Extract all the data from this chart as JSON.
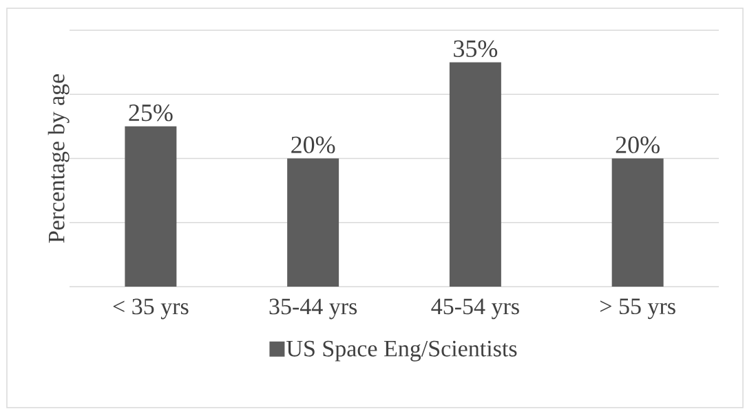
{
  "chart_data": {
    "type": "bar",
    "ylabel": "Percentage  by age",
    "categories": [
      "< 35 yrs",
      "35-44 yrs",
      "45-54 yrs",
      "> 55 yrs"
    ],
    "series": [
      {
        "name": "US Space Eng/Scientists",
        "color": "#5d5d5d",
        "values": [
          25,
          20,
          35,
          20
        ],
        "value_labels": [
          "25%",
          "20%",
          "35%",
          "20%"
        ]
      }
    ],
    "ylim": [
      0,
      40
    ],
    "yticks": [
      {
        "value": 0,
        "label": null
      },
      {
        "value": 10,
        "label": null
      },
      {
        "value": 20,
        "label": null
      },
      {
        "value": 30,
        "label": null
      },
      {
        "value": 40,
        "label": null
      }
    ],
    "tick_labels": "x",
    "grid": "y",
    "legend": "bottom"
  }
}
